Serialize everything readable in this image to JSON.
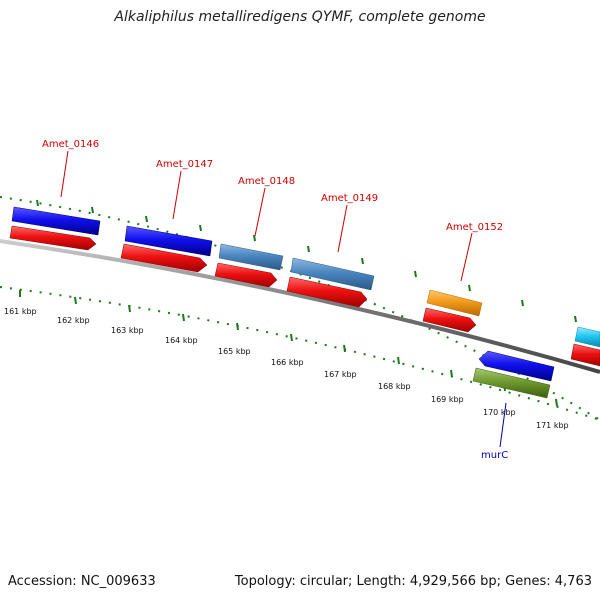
{
  "title": "Alkaliphilus metalliredigens QYMF, complete genome",
  "accession": "Accession: NC_009633",
  "summary": "Topology: circular; Length: 4,929,566 bp; Genes: 4,763",
  "colors": {
    "backbone": "#888888",
    "tick": "#1a7a1a",
    "red_gene": "#ee1111",
    "blue_gene": "#1010ee",
    "steel_gene": "#4a86c0",
    "orange_gene": "#f29a1a",
    "olive_gene": "#6f9a30",
    "cyan_gene": "#22c8f0",
    "label_red": "#cc0000",
    "label_blue": "#0000aa"
  },
  "kbp_labels": [
    "161 kbp",
    "162 kbp",
    "163 kbp",
    "164 kbp",
    "165 kbp",
    "166 kbp",
    "167 kbp",
    "168 kbp",
    "169 kbp",
    "170 kbp",
    "171 kbp"
  ],
  "gene_labels": [
    "Amet_0146",
    "Amet_0147",
    "Amet_0148",
    "Amet_0149",
    "Amet_0152",
    "murC"
  ]
}
